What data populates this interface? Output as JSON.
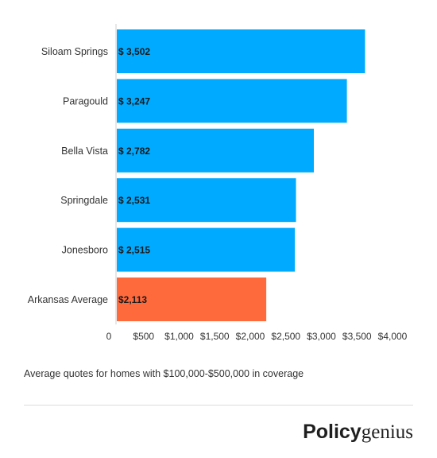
{
  "chart_data": {
    "type": "bar",
    "orientation": "horizontal",
    "categories": [
      "Siloam Springs",
      "Paragould",
      "Bella Vista",
      "Springdale",
      "Jonesboro",
      "Arkansas Average"
    ],
    "values": [
      3502,
      3247,
      2782,
      2531,
      2515,
      2113
    ],
    "value_labels": [
      "$ 3,502",
      "$ 3,247",
      "$ 2,782",
      "$ 2,531",
      "$ 2,515",
      "$2,113"
    ],
    "bar_colors": [
      "#00aaff",
      "#00aaff",
      "#00aaff",
      "#00aaff",
      "#00aaff",
      "#ff6a3d"
    ],
    "x_ticks": [
      0,
      500,
      1000,
      1500,
      2000,
      2500,
      3000,
      3500,
      4000
    ],
    "x_tick_labels": [
      "0",
      "$500",
      "$1,000",
      "$1,500",
      "$2,000",
      "$2,500",
      "$3,000",
      "$3,500",
      "$4,000"
    ],
    "xlim": [
      0,
      4000
    ],
    "grid": false,
    "legend": "none"
  },
  "caption": "Average quotes for homes with $100,000-$500,000 in coverage",
  "brand": {
    "bold": "Policy",
    "light": "genius"
  }
}
